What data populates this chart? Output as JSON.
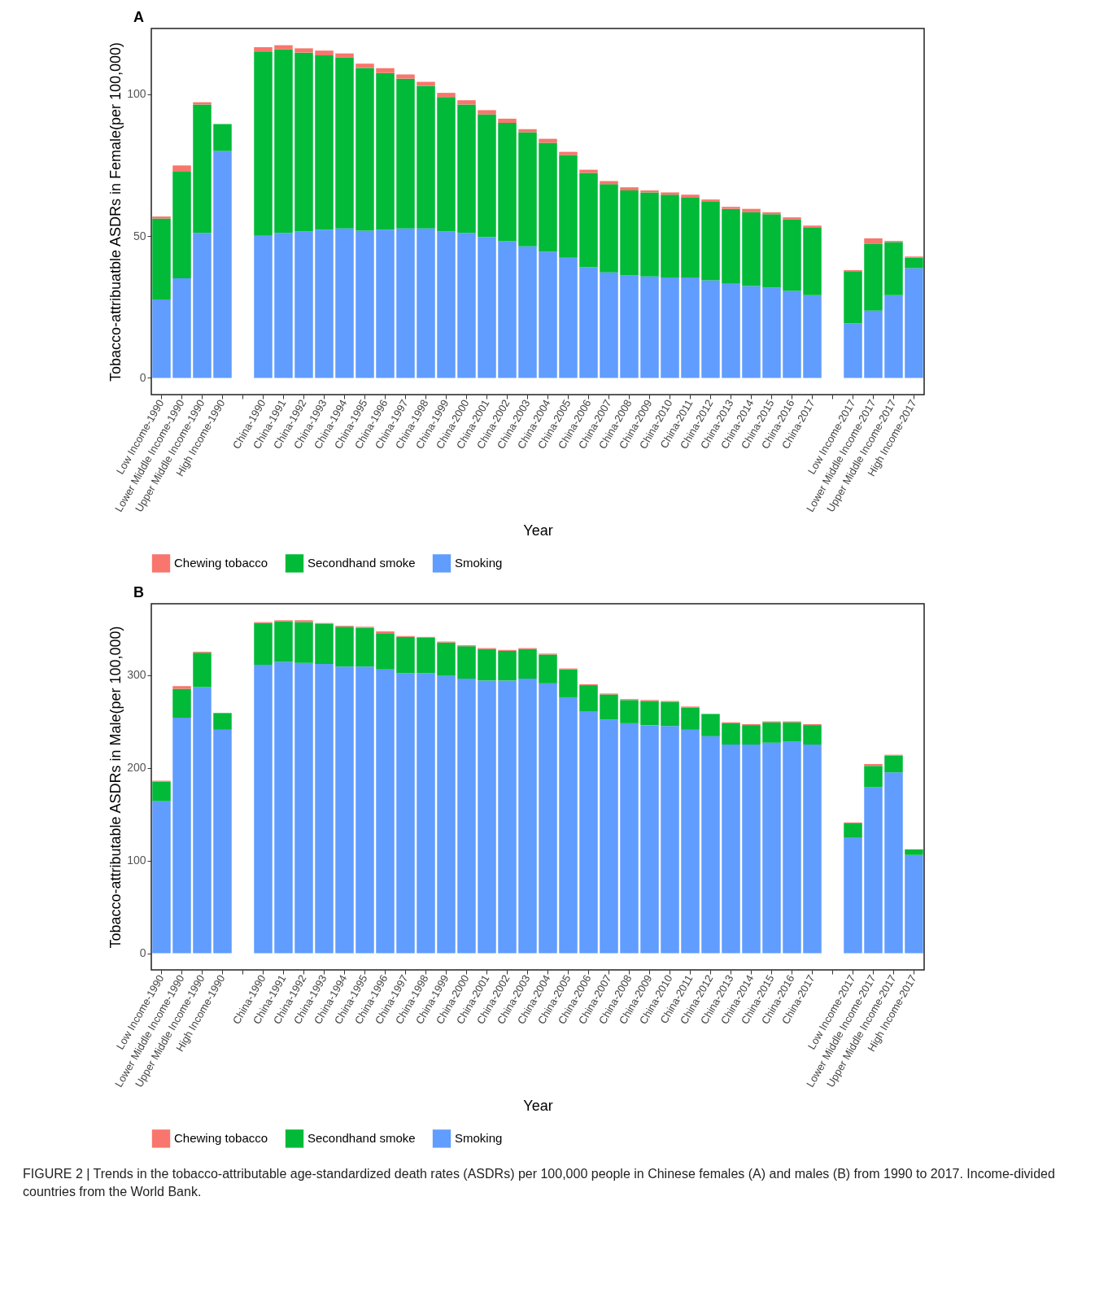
{
  "chart_data": [
    {
      "type": "bar",
      "title": "A",
      "stacked": true,
      "xlabel": "Year",
      "ylabel": "Tobacco-attribuatble ASDRs in Female(per 100,000)",
      "categories": [
        "Low Income-1990",
        "Lower Middle Income-1990",
        "Upper Middle Income-1990",
        "High Income-1990",
        null,
        "China-1990",
        "China-1991",
        "China-1992",
        "China-1993",
        "China-1994",
        "China-1995",
        "China-1996",
        "China-1997",
        "China-1998",
        "China-1999",
        "China-2000",
        "China-2001",
        "China-2002",
        "China-2003",
        "China-2004",
        "China-2005",
        "China-2006",
        "China-2007",
        "China-2008",
        "China-2009",
        "China-2010",
        "China-2011",
        "China-2012",
        "China-2013",
        "China-2014",
        "China-2015",
        "China-2016",
        "China-2017",
        null,
        "Low Income-2017",
        "Lower Middle Income-2017",
        "Upper Middle Income-2017",
        "High Income-2017"
      ],
      "series": [
        {
          "name": "Smoking",
          "color": "#619cff",
          "values": [
            27.7,
            35.1,
            51.1,
            80.0,
            null,
            50.1,
            51.1,
            51.6,
            52.3,
            52.7,
            51.9,
            52.3,
            52.7,
            52.7,
            51.6,
            51.1,
            49.7,
            48.2,
            46.4,
            44.5,
            42.4,
            39.1,
            37.2,
            36.1,
            35.8,
            35.4,
            35.4,
            34.4,
            33.2,
            32.4,
            31.8,
            30.7,
            29.2,
            null,
            19.3,
            23.7,
            29.2,
            38.7
          ]
        },
        {
          "name": "Secondhand smoke",
          "color": "#00ba38",
          "values": [
            28.5,
            37.6,
            45.3,
            9.5,
            null,
            65.0,
            64.7,
            63.1,
            61.4,
            60.2,
            57.4,
            55.2,
            52.8,
            50.3,
            47.4,
            45.3,
            43.2,
            41.7,
            40.2,
            38.4,
            36.2,
            33.2,
            31.1,
            30.0,
            29.6,
            29.2,
            28.1,
            27.7,
            26.4,
            26.0,
            25.9,
            25.2,
            23.7,
            null,
            18.3,
            23.5,
            18.7,
            3.7
          ]
        },
        {
          "name": "Chewing tobacco",
          "color": "#f8766d",
          "values": [
            0.7,
            2.2,
            0.8,
            0,
            null,
            1.5,
            1.5,
            1.5,
            1.7,
            1.5,
            1.5,
            1.7,
            1.5,
            1.4,
            1.5,
            1.5,
            1.5,
            1.5,
            1.1,
            1.4,
            1.1,
            1.1,
            1.1,
            1.1,
            0.7,
            0.8,
            1.1,
            0.8,
            0.7,
            1.2,
            0.7,
            0.7,
            0.8,
            null,
            0.4,
            2.0,
            0.4,
            0.4
          ]
        }
      ],
      "ylim": [
        -5.9,
        123.2
      ],
      "yticks": [
        0,
        50,
        100
      ],
      "grid": false,
      "legend": "bottom"
    },
    {
      "type": "bar",
      "title": "B",
      "stacked": true,
      "xlabel": "Year",
      "ylabel": "Tobacco-attributable ASDRs in Male(per 100,000)",
      "categories": [
        "Low Income-1990",
        "Lower Middle Income-1990",
        "Upper Middle Income-1990",
        "High Income-1990",
        null,
        "China-1990",
        "China-1991",
        "China-1992",
        "China-1993",
        "China-1994",
        "China-1995",
        "China-1996",
        "China-1997",
        "China-1998",
        "China-1999",
        "China-2000",
        "China-2001",
        "China-2002",
        "China-2003",
        "China-2004",
        "China-2005",
        "China-2006",
        "China-2007",
        "China-2008",
        "China-2009",
        "China-2010",
        "China-2011",
        "China-2012",
        "China-2013",
        "China-2014",
        "China-2015",
        "China-2016",
        "China-2017",
        null,
        "Low Income-2017",
        "Lower Middle Income-2017",
        "Upper Middle Income-2017",
        "High Income-2017"
      ],
      "series": [
        {
          "name": "Smoking",
          "color": "#619cff",
          "values": [
            164,
            254,
            287,
            241,
            null,
            311,
            314,
            313,
            312,
            309,
            309,
            306,
            302,
            302,
            299,
            296,
            294,
            294,
            296,
            291,
            276,
            261,
            252,
            248,
            246,
            245,
            241,
            234,
            225,
            225,
            227,
            228,
            225,
            null,
            125,
            179,
            195,
            106
          ]
        },
        {
          "name": "Secondhand smoke",
          "color": "#00ba38",
          "values": [
            21,
            31,
            37,
            18,
            null,
            45,
            44,
            44,
            43,
            43,
            42,
            39,
            39,
            38,
            36,
            35,
            34,
            32,
            32,
            31,
            30,
            28,
            27,
            25,
            26,
            26,
            24,
            24,
            23,
            21,
            22,
            21,
            21,
            null,
            15,
            23,
            18,
            6
          ]
        },
        {
          "name": "Chewing tobacco",
          "color": "#f8766d",
          "values": [
            1,
            3,
            1,
            0,
            null,
            1,
            1,
            2,
            1,
            1,
            1,
            2,
            1,
            1,
            1,
            1,
            1,
            1,
            1,
            1,
            1,
            1,
            1,
            1,
            1,
            1,
            1,
            0,
            1,
            1,
            1,
            1,
            1,
            null,
            1,
            2,
            1,
            0
          ]
        }
      ],
      "ylim": [
        -17.9,
        376.8
      ],
      "yticks": [
        0,
        100,
        200,
        300
      ],
      "grid": false,
      "legend": "bottom",
      "annotations": [
        "FIGURE 2 | Trends in the tobacco-attributable age-standardized death rates (ASDRs) per 100,000 people in Chinese females (A) and males (B) from 1990 to 2017. Income-divided countries from the World Bank."
      ]
    }
  ]
}
